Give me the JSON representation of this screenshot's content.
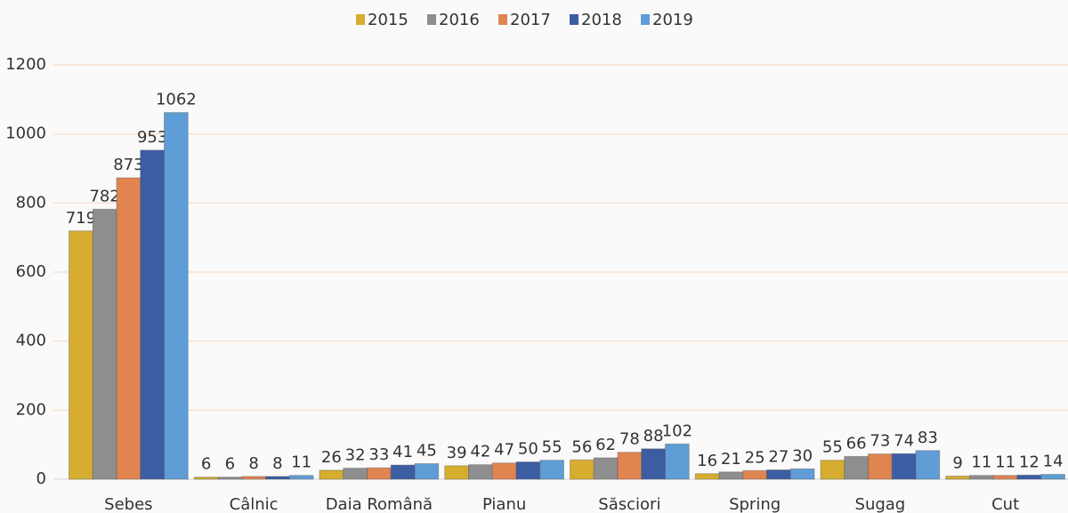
{
  "chart_data": {
    "type": "bar",
    "categories": [
      "Sebes",
      "Câlnic",
      "Daia Română",
      "Pianu",
      "Săsciori",
      "Spring",
      "Sugag",
      "Cut"
    ],
    "series": [
      {
        "name": "2015",
        "color": "#d6ad2e",
        "values": [
          719,
          6,
          26,
          39,
          56,
          16,
          55,
          9
        ]
      },
      {
        "name": "2016",
        "color": "#8e8e8e",
        "values": [
          782,
          6,
          32,
          42,
          62,
          21,
          66,
          11
        ]
      },
      {
        "name": "2017",
        "color": "#e08450",
        "values": [
          873,
          8,
          33,
          47,
          78,
          25,
          73,
          11
        ]
      },
      {
        "name": "2018",
        "color": "#3d5da3",
        "values": [
          953,
          8,
          41,
          50,
          88,
          27,
          74,
          12
        ]
      },
      {
        "name": "2019",
        "color": "#5f9dd6",
        "values": [
          1062,
          11,
          45,
          55,
          102,
          30,
          83,
          14
        ]
      }
    ],
    "ylim": [
      0,
      1200
    ],
    "yticks": [
      0,
      200,
      400,
      600,
      800,
      1000,
      1200
    ],
    "grid": true,
    "legend": "top"
  }
}
